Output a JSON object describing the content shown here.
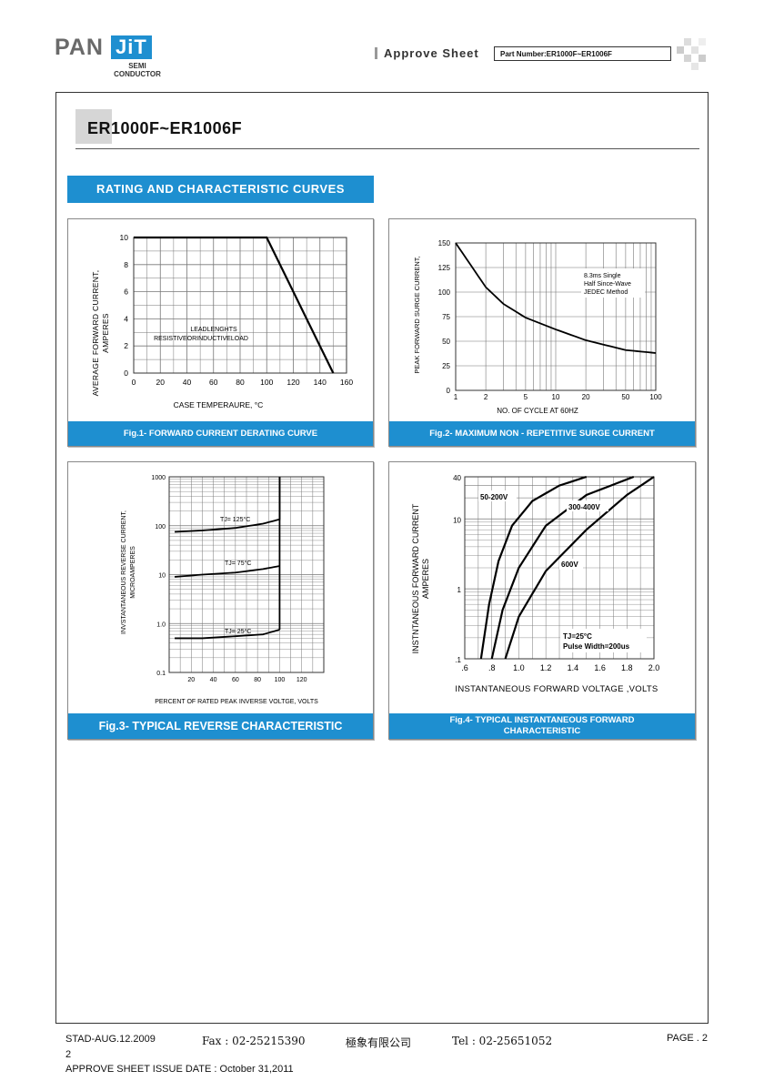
{
  "header": {
    "logo_text_left": "PAN",
    "logo_text_box": "JiT",
    "logo_sub_1": "SEMI",
    "logo_sub_2": "CONDUCTOR",
    "approve_sheet": "Approve Sheet",
    "part_number": "Part Number:ER1000F~ER1006F"
  },
  "page_title": "ER1000F~ER1006F",
  "section_banner": "RATING AND CHARACTERISTIC CURVES",
  "fig1": {
    "caption": "Fig.1- FORWARD CURRENT DERATING CURVE",
    "ylabel_1": "AVERAGE FORWARD CURRENT,",
    "ylabel_2": "AMPERES",
    "xlabel": "CASE TEMPERAURE, °C",
    "note_1": "LEADLENGHTS",
    "note_2": "RESISTIVEORINDUCTIVELOAD",
    "xticks": [
      "0",
      "20",
      "40",
      "60",
      "80",
      "100",
      "120",
      "140",
      "160"
    ],
    "yticks": [
      "0",
      "2",
      "4",
      "6",
      "8",
      "10"
    ]
  },
  "fig2": {
    "caption": "Fig.2- MAXIMUM NON - REPETITIVE SURGE CURRENT",
    "ylabel": "PEAK FORWARD SURGE CURRENT,",
    "xlabel": "NO. OF CYCLE AT 60HZ",
    "note_1": "8.3ms Single",
    "note_2": "Half Since-Wave",
    "note_3": "JEDEC Method",
    "xticks": [
      "1",
      "2",
      "5",
      "10",
      "20",
      "50",
      "100"
    ],
    "yticks": [
      "0",
      "25",
      "50",
      "75",
      "100",
      "125",
      "150"
    ]
  },
  "fig3": {
    "caption": "Fig.3- TYPICAL REVERSE CHARACTERISTIC",
    "ylabel_1": "INVSTANTANEOUS REVERSE CURRENT,",
    "ylabel_2": "MICROAMPERES",
    "xlabel": "PERCENT OF RATED PEAK INVERSE VOLTGE, VOLTS",
    "label_125": "TJ= 125°C",
    "label_75": "TJ= 75°C",
    "label_25": "TJ= 25°C",
    "xticks": [
      "20",
      "40",
      "60",
      "80",
      "100",
      "120"
    ],
    "yticks": [
      "0.1",
      "1.0",
      "10",
      "100",
      "1000"
    ]
  },
  "fig4": {
    "caption_1": "Fig.4- TYPICAL INSTANTANEOUS FORWARD",
    "caption_2": "CHARACTERISTIC",
    "ylabel_1": "INSTNTANEOUS FORWARD CURRENT",
    "ylabel_2": "AMPERES",
    "xlabel": "INSTANTANEOUS FORWARD VOLTAGE ,VOLTS",
    "label_a": "50-200V",
    "label_b": "300-400V",
    "label_c": "600V",
    "cond_1": "TJ=25°C",
    "cond_2": "Pulse Width=200us",
    "xticks": [
      ".6",
      ".8",
      "1.0",
      "1.2",
      "1.4",
      "1.6",
      "1.8",
      "2.0"
    ],
    "yticks": [
      ".1",
      "1",
      "10",
      "40"
    ]
  },
  "footer": {
    "left": "STAD-AUG.12.2009",
    "fax": "Fax : 02-25215390",
    "company": "極象有限公司",
    "tel": "Tel : 02-25651052",
    "page": "PAGE . 2",
    "page_num": "2",
    "issue_date": "APPROVE SHEET ISSUE DATE : October 31,2011"
  },
  "colors": {
    "accent": "#1e8fd0",
    "grid": "#777777",
    "curve": "#000000"
  },
  "chart_data": [
    {
      "type": "line",
      "title": "Fig.1- FORWARD CURRENT DERATING CURVE",
      "xlabel": "CASE TEMPERAURE, °C",
      "ylabel": "AVERAGE FORWARD CURRENT, AMPERES",
      "xlim": [
        0,
        160
      ],
      "ylim": [
        0,
        10
      ],
      "series": [
        {
          "x": [
            0,
            100,
            150
          ],
          "y": [
            10,
            10,
            0
          ]
        }
      ],
      "grid": true
    },
    {
      "type": "line",
      "title": "Fig.2- MAXIMUM NON - REPETITIVE SURGE CURRENT",
      "xlabel": "NO. OF CYCLE AT 60HZ",
      "ylabel": "PEAK FORWARD SURGE CURRENT,",
      "xscale": "log",
      "xlim": [
        1,
        100
      ],
      "ylim": [
        0,
        150
      ],
      "series": [
        {
          "x": [
            1,
            2,
            3,
            5,
            10,
            20,
            50,
            100
          ],
          "y": [
            150,
            105,
            88,
            74,
            62,
            51,
            41,
            38
          ]
        }
      ],
      "grid": true
    },
    {
      "type": "line",
      "title": "Fig.3- TYPICAL REVERSE CHARACTERISTIC",
      "xlabel": "PERCENT OF RATED PEAK INVERSE VOLTGE, VOLTS",
      "ylabel": "INVSTANTANEOUS REVERSE CURRENT, MICROAMPERES",
      "yscale": "log",
      "xlim": [
        0,
        140
      ],
      "ylim": [
        0.1,
        1000
      ],
      "series": [
        {
          "name": "TJ= 125°C",
          "x": [
            5,
            30,
            60,
            85,
            100,
            100
          ],
          "y": [
            75,
            80,
            90,
            110,
            135,
            1000
          ]
        },
        {
          "name": "TJ= 75°C",
          "x": [
            5,
            30,
            60,
            85,
            100
          ],
          "y": [
            9,
            10,
            11,
            13,
            15
          ]
        },
        {
          "name": "TJ= 25°C",
          "x": [
            5,
            30,
            60,
            85,
            100
          ],
          "y": [
            0.5,
            0.5,
            0.55,
            0.6,
            0.75
          ]
        }
      ],
      "grid": true
    },
    {
      "type": "line",
      "title": "Fig.4- TYPICAL INSTANTANEOUS FORWARD CHARACTERISTIC",
      "xlabel": "INSTANTANEOUS FORWARD VOLTAGE ,VOLTS",
      "ylabel": "INSTNTANEOUS FORWARD CURRENT AMPERES",
      "yscale": "log",
      "xlim": [
        0.6,
        2.0
      ],
      "ylim": [
        0.1,
        40
      ],
      "series": [
        {
          "name": "50-200V",
          "x": [
            0.72,
            0.78,
            0.85,
            0.95,
            1.1,
            1.3,
            1.5
          ],
          "y": [
            0.1,
            0.6,
            2.5,
            8,
            18,
            30,
            40
          ]
        },
        {
          "name": "300-400V",
          "x": [
            0.8,
            0.88,
            1.0,
            1.2,
            1.5,
            1.85
          ],
          "y": [
            0.1,
            0.5,
            2,
            8,
            22,
            40
          ]
        },
        {
          "name": "600V",
          "x": [
            0.9,
            1.0,
            1.2,
            1.5,
            1.8,
            2.0
          ],
          "y": [
            0.1,
            0.4,
            1.8,
            7,
            22,
            40
          ]
        }
      ],
      "grid": true
    }
  ]
}
